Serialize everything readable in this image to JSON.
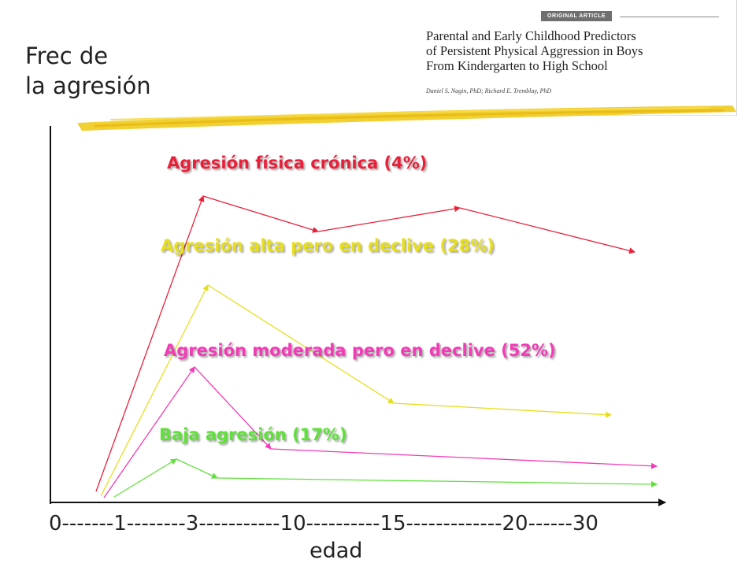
{
  "y_axis_label": [
    "Frec de",
    "la agresión"
  ],
  "x_axis_label": "edad",
  "x_axis_ticks": "0-------1--------3-----------10----------15-------------20------30",
  "article": {
    "tag": "ORIGINAL ARTICLE",
    "title_lines": [
      "Parental and Early Childhood Predictors",
      "of Persistent Physical Aggression in Boys",
      "From Kindergarten to High School"
    ],
    "authors": "Daniel S. Nagin, PhD; Richard E. Tremblay, PhD"
  },
  "trajectories": [
    {
      "label": "Agresión física crónica (4%)",
      "color": "#e8203a"
    },
    {
      "label": "Agresión alta pero en declive (28%)",
      "color": "#e6de1f"
    },
    {
      "label": "Agresión moderada pero en declive (52%)",
      "color": "#f23bb7"
    },
    {
      "label": "Baja agresión (17%)",
      "color": "#5fe03a"
    }
  ],
  "highlighter_color": "#f0cb1c"
}
